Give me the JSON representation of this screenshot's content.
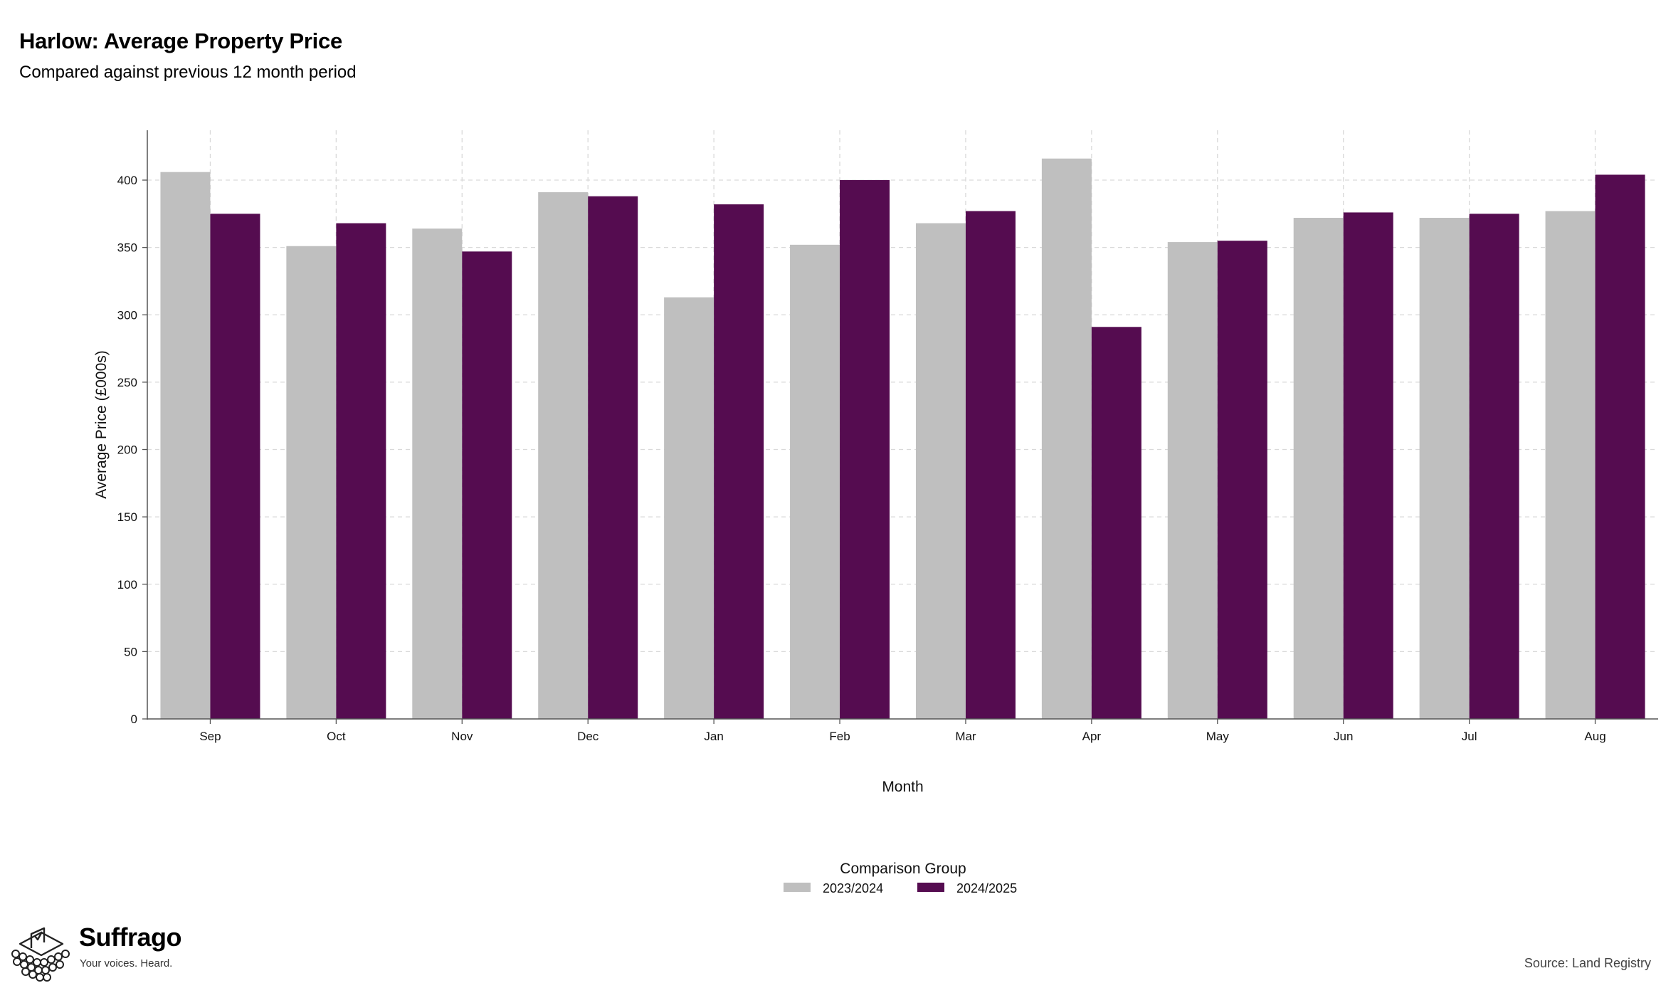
{
  "header": {
    "title": "Harlow: Average Property Price",
    "subtitle": "Compared against previous 12 month period"
  },
  "footer": {
    "brand_name": "Suffrago",
    "brand_tagline": "Your voices. Heard.",
    "source": "Source: Land Registry"
  },
  "chart_data": {
    "type": "bar",
    "title": "Harlow: Average Property Price",
    "subtitle": "Compared against previous 12 month period",
    "xlabel": "Month",
    "ylabel": "Average Price (£000s)",
    "ylim": [
      0,
      437
    ],
    "yticks": [
      0,
      50,
      100,
      150,
      200,
      250,
      300,
      350,
      400
    ],
    "categories": [
      "Sep",
      "Oct",
      "Nov",
      "Dec",
      "Jan",
      "Feb",
      "Mar",
      "Apr",
      "May",
      "Jun",
      "Jul",
      "Aug"
    ],
    "series": [
      {
        "name": "2023/2024",
        "color": "#bfbfbf",
        "values": [
          406,
          351,
          364,
          391,
          313,
          352,
          368,
          416,
          354,
          372,
          372,
          377
        ]
      },
      {
        "name": "2024/2025",
        "color": "#550c50",
        "values": [
          375,
          368,
          347,
          388,
          382,
          400,
          377,
          291,
          355,
          376,
          375,
          404
        ]
      }
    ],
    "grid": true,
    "legend": {
      "title": "Comparison Group",
      "position": "bottom-center"
    }
  }
}
